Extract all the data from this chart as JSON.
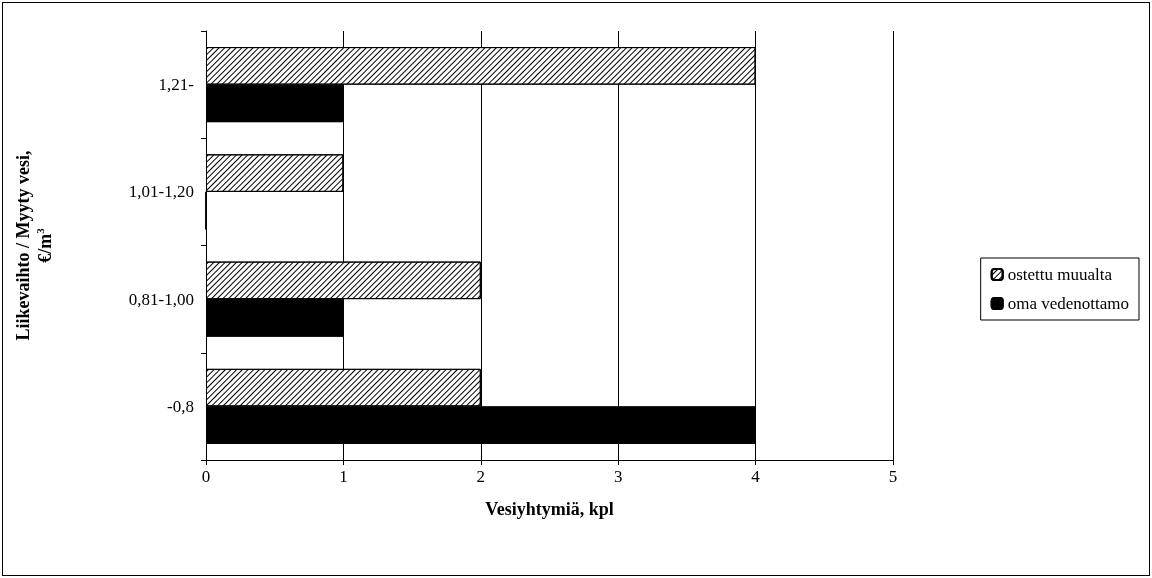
{
  "chart_data": {
    "type": "bar",
    "orientation": "horizontal",
    "xlabel": "Vesiyhtymiä, kpl",
    "ylabel": "Liikevaihto / Myyty vesi, €/m$^{3}$",
    "categories": [
      "1,21-",
      "1,01-1,20",
      "0,81-1,00",
      "-0,8"
    ],
    "series": [
      {
        "name": "ostettu muualta",
        "color": "#ffffff",
        "values": [
          4,
          1,
          2,
          2
        ]
      },
      {
        "name": "oma vedenottamo",
        "color": "#000000",
        "values": [
          1,
          0,
          1,
          4
        ]
      }
    ],
    "xlim": [
      0,
      5
    ],
    "xticks": [
      0,
      1,
      2,
      3,
      4,
      5
    ],
    "grid": "x",
    "legend": "right"
  }
}
